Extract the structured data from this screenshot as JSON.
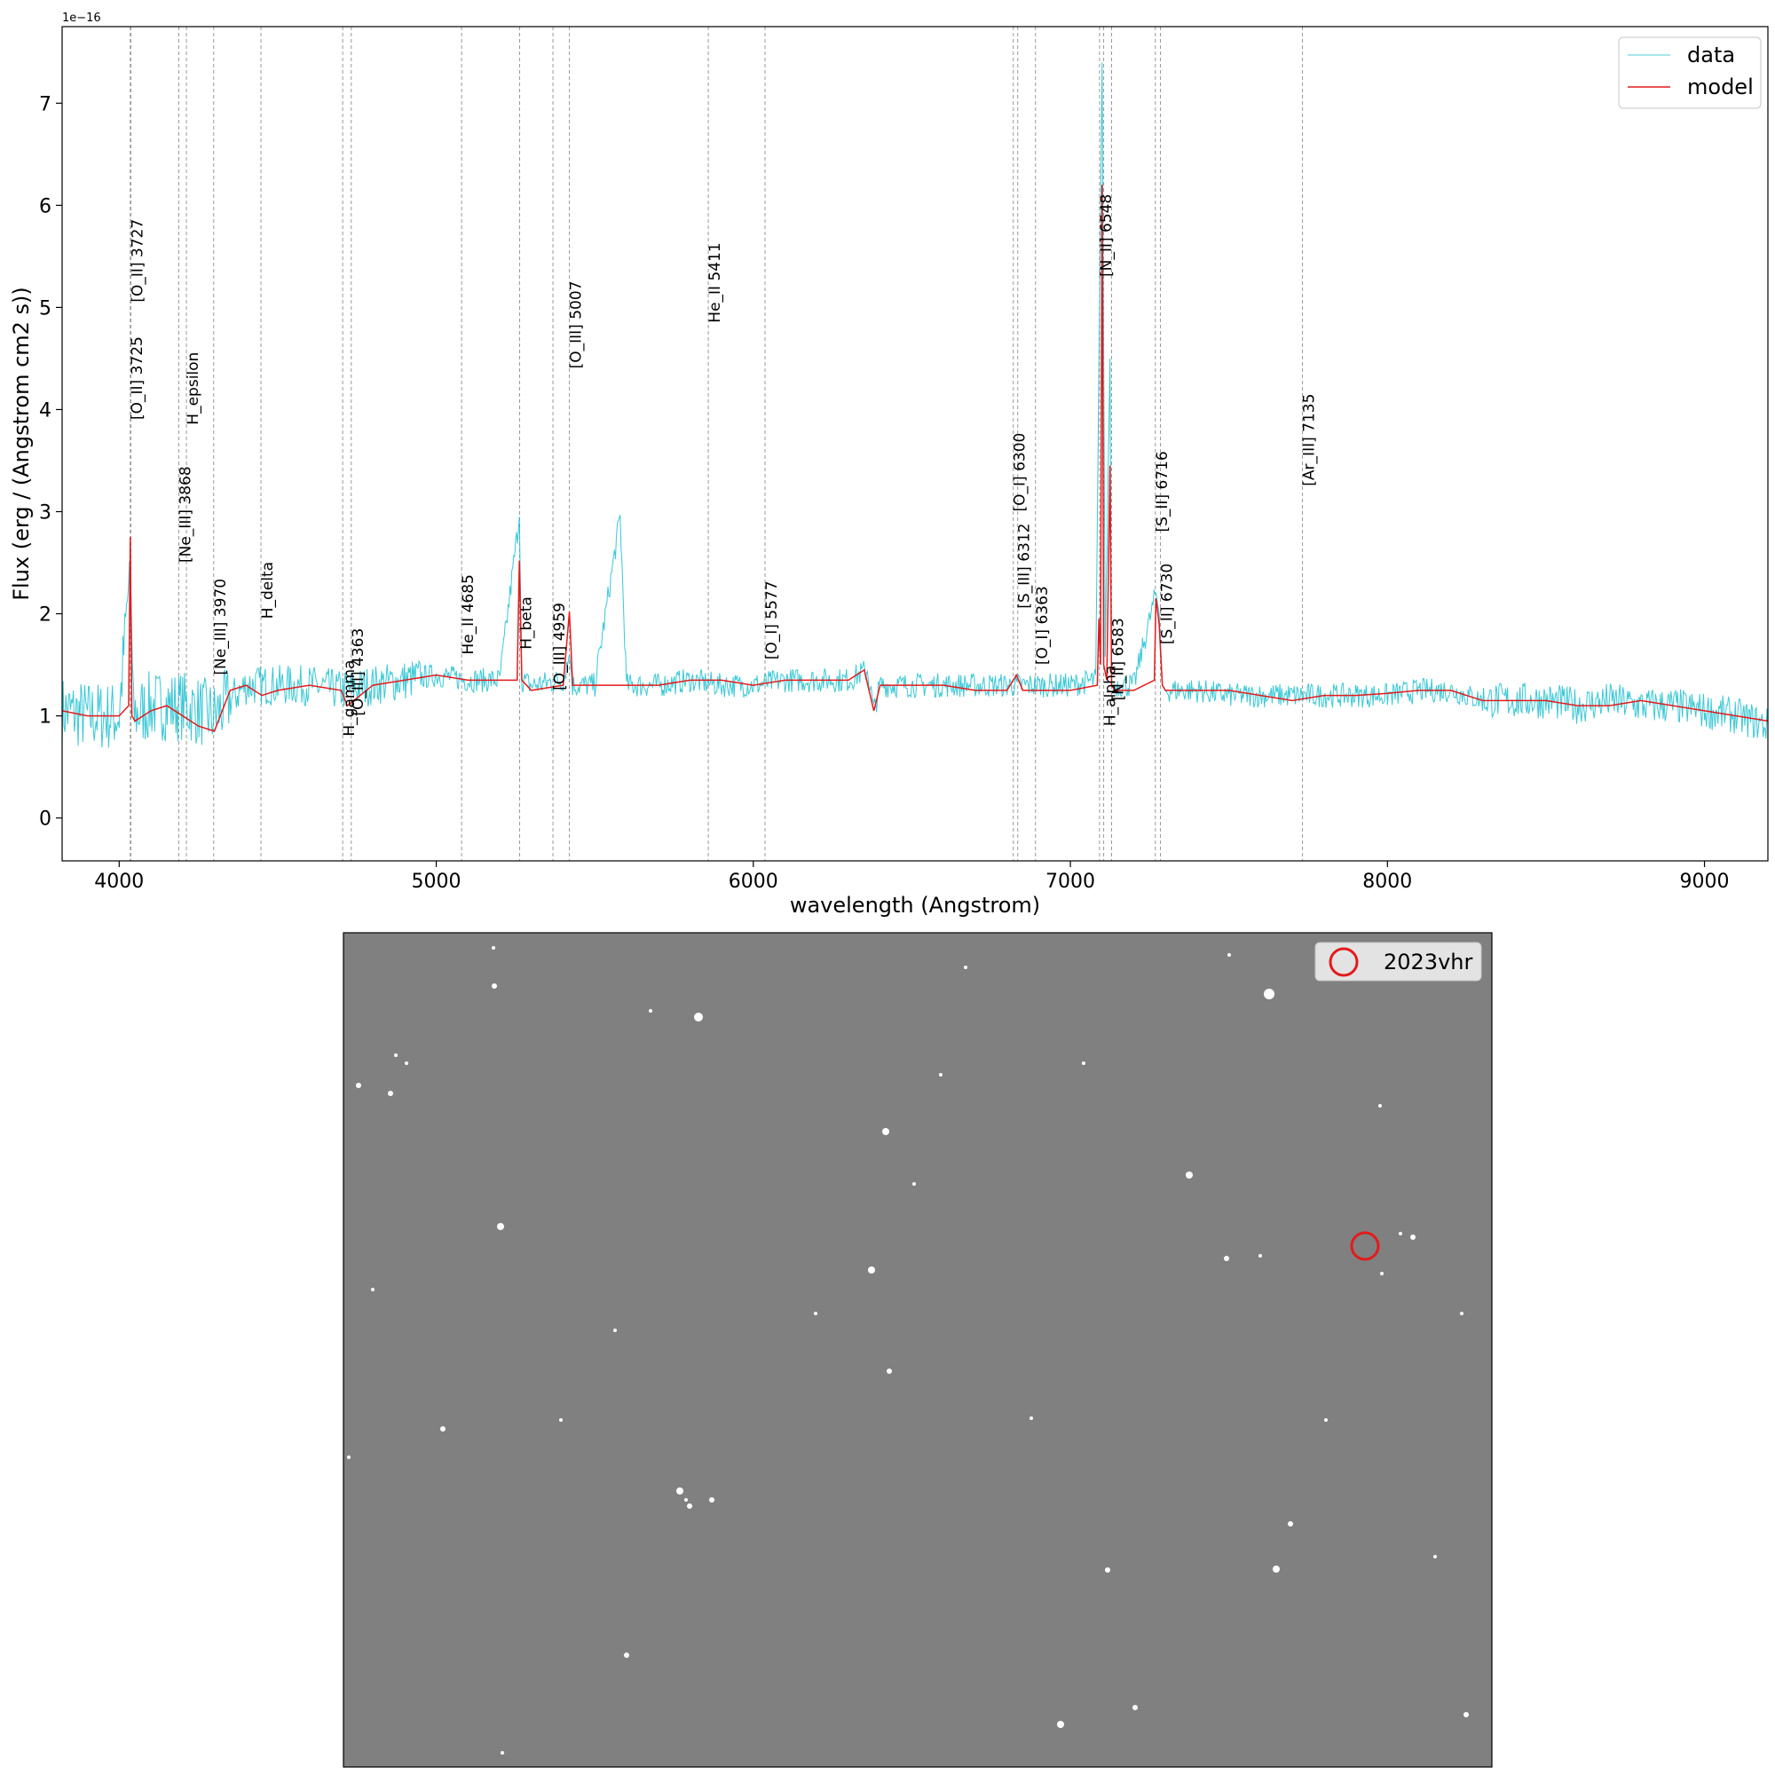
{
  "chart_data": [
    {
      "type": "line",
      "title": "",
      "xlabel": "wavelength (Angstrom)",
      "ylabel": "Flux (erg / (Angstrom cm2 s))",
      "y_offset_label": "1e−16",
      "xlim": [
        3820,
        9200
      ],
      "ylim": [
        -0.42,
        7.75
      ],
      "x_ticks": [
        4000,
        5000,
        6000,
        7000,
        8000,
        9000
      ],
      "x_tick_labels": [
        "4000",
        "5000",
        "6000",
        "7000",
        "8000",
        "9000"
      ],
      "y_ticks": [
        0,
        1,
        2,
        3,
        4,
        5,
        6,
        7
      ],
      "y_tick_labels": [
        "0",
        "1",
        "2",
        "3",
        "4",
        "5",
        "6",
        "7"
      ],
      "grid": false,
      "legend_position": "top-right",
      "series": [
        {
          "name": "data",
          "color": "#17becf",
          "style": "thin noisy line",
          "x": [
            3820,
            3900,
            4000,
            4035,
            4045,
            4100,
            4200,
            4300,
            4400,
            4500,
            4600,
            4700,
            4800,
            4900,
            5000,
            5100,
            5200,
            5262,
            5270,
            5300,
            5400,
            5420,
            5430,
            5500,
            5580,
            5600,
            5700,
            5800,
            5900,
            6000,
            6100,
            6200,
            6300,
            6360,
            6380,
            6400,
            6500,
            6600,
            6700,
            6800,
            6900,
            7000,
            7080,
            7100,
            7110,
            7125,
            7130,
            7140,
            7200,
            7270,
            7280,
            7290,
            7300,
            7400,
            7500,
            7600,
            7700,
            7800,
            7900,
            8000,
            8100,
            8200,
            8300,
            8400,
            8500,
            8600,
            8700,
            8800,
            8900,
            9000,
            9100,
            9200
          ],
          "y": [
            1.05,
            1.0,
            1.0,
            2.5,
            1.0,
            1.1,
            1.1,
            1.0,
            1.3,
            1.3,
            1.3,
            1.25,
            1.3,
            1.35,
            1.4,
            1.35,
            1.35,
            2.95,
            1.35,
            1.3,
            1.35,
            1.6,
            1.3,
            1.3,
            2.95,
            1.3,
            1.3,
            1.35,
            1.3,
            1.3,
            1.35,
            1.35,
            1.35,
            1.45,
            1.05,
            1.3,
            1.3,
            1.3,
            1.3,
            1.3,
            1.3,
            1.3,
            1.35,
            7.4,
            1.6,
            4.5,
            1.3,
            1.3,
            1.3,
            2.2,
            2.0,
            1.3,
            1.25,
            1.25,
            1.2,
            1.2,
            1.2,
            1.2,
            1.2,
            1.2,
            1.25,
            1.25,
            1.15,
            1.15,
            1.15,
            1.1,
            1.15,
            1.1,
            1.1,
            1.05,
            1.0,
            0.9
          ]
        },
        {
          "name": "model",
          "color": "#e31a1c",
          "style": "line",
          "x": [
            3820,
            3900,
            4000,
            4030,
            4035,
            4040,
            4050,
            4100,
            4150,
            4200,
            4250,
            4300,
            4350,
            4400,
            4450,
            4500,
            4600,
            4700,
            4720,
            4800,
            4900,
            5000,
            5100,
            5200,
            5255,
            5262,
            5270,
            5300,
            5400,
            5420,
            5430,
            5500,
            5600,
            5700,
            5800,
            5900,
            6000,
            6100,
            6200,
            6300,
            6350,
            6380,
            6400,
            6500,
            6600,
            6700,
            6800,
            6830,
            6850,
            6900,
            7000,
            7085,
            7090,
            7095,
            7100,
            7105,
            7115,
            7125,
            7130,
            7140,
            7200,
            7265,
            7270,
            7280,
            7290,
            7300,
            7400,
            7500,
            7600,
            7700,
            7800,
            7900,
            8000,
            8100,
            8200,
            8300,
            8400,
            8500,
            8600,
            8700,
            8800,
            8900,
            9000,
            9100,
            9200
          ],
          "y": [
            1.05,
            1.0,
            1.0,
            1.1,
            2.75,
            1.0,
            0.95,
            1.05,
            1.1,
            1.0,
            0.9,
            0.85,
            1.25,
            1.3,
            1.2,
            1.25,
            1.3,
            1.25,
            1.1,
            1.3,
            1.35,
            1.4,
            1.35,
            1.35,
            1.35,
            2.52,
            1.35,
            1.25,
            1.3,
            2.02,
            1.3,
            1.3,
            1.3,
            1.3,
            1.35,
            1.35,
            1.3,
            1.35,
            1.35,
            1.35,
            1.45,
            1.05,
            1.3,
            1.3,
            1.3,
            1.25,
            1.25,
            1.4,
            1.25,
            1.25,
            1.25,
            1.3,
            1.95,
            1.5,
            6.2,
            1.5,
            1.35,
            3.45,
            1.3,
            1.25,
            1.25,
            1.35,
            2.15,
            1.9,
            1.3,
            1.25,
            1.25,
            1.25,
            1.2,
            1.15,
            1.2,
            1.2,
            1.22,
            1.25,
            1.25,
            1.15,
            1.15,
            1.15,
            1.1,
            1.1,
            1.15,
            1.1,
            1.05,
            1.0,
            0.95
          ]
        }
      ],
      "annotations": [
        {
          "text": "[O_II] 3725",
          "x": 4035,
          "y": 3.9
        },
        {
          "text": "[O_II] 3727",
          "x": 4037,
          "y": 5.05
        },
        {
          "text": "[Ne_III] 3868",
          "x": 4188,
          "y": 2.5
        },
        {
          "text": "H_epsilon",
          "x": 4212,
          "y": 3.85
        },
        {
          "text": "[Ne_III] 3970",
          "x": 4298,
          "y": 1.4
        },
        {
          "text": "H_delta",
          "x": 4447,
          "y": 1.95
        },
        {
          "text": "H_gamma",
          "x": 4705,
          "y": 0.8
        },
        {
          "text": "[O_III] 4363",
          "x": 4732,
          "y": 1.0
        },
        {
          "text": "He_II 4685",
          "x": 5080,
          "y": 1.6
        },
        {
          "text": "H_beta",
          "x": 5263,
          "y": 1.65
        },
        {
          "text": "[O_III] 4959",
          "x": 5368,
          "y": 1.25
        },
        {
          "text": "[O_III] 5007",
          "x": 5420,
          "y": 4.4
        },
        {
          "text": "He_II 5411",
          "x": 5858,
          "y": 4.85
        },
        {
          "text": "[O_I] 5577",
          "x": 6037,
          "y": 1.55
        },
        {
          "text": "[O_I] 6300",
          "x": 6820,
          "y": 3.0
        },
        {
          "text": "[S_III] 6312",
          "x": 6834,
          "y": 2.05
        },
        {
          "text": "[O_I] 6363",
          "x": 6890,
          "y": 1.5
        },
        {
          "text": "H_alpha",
          "x": 7105,
          "y": 0.9
        },
        {
          "text": "[N_II] 6548",
          "x": 7092,
          "y": 5.3
        },
        {
          "text": "[N_II] 6583",
          "x": 7130,
          "y": 1.15
        },
        {
          "text": "[S_II] 6716",
          "x": 7268,
          "y": 2.8
        },
        {
          "text": "[S_II] 6730",
          "x": 7284,
          "y": 1.7
        },
        {
          "text": "[Ar_III] 7135",
          "x": 7732,
          "y": 3.25
        }
      ],
      "line_markers_x": [
        4035,
        4037,
        4188,
        4212,
        4298,
        4447,
        4705,
        4732,
        5080,
        5263,
        5368,
        5420,
        5858,
        6037,
        6820,
        6834,
        6890,
        7092,
        7105,
        7130,
        7268,
        7284,
        7732
      ]
    },
    {
      "type": "image",
      "description": "grayscale star field with circled source",
      "legend_entries": [
        "2023vhr"
      ],
      "marker_color": "#e31a1c",
      "background_color": "#808080"
    }
  ]
}
